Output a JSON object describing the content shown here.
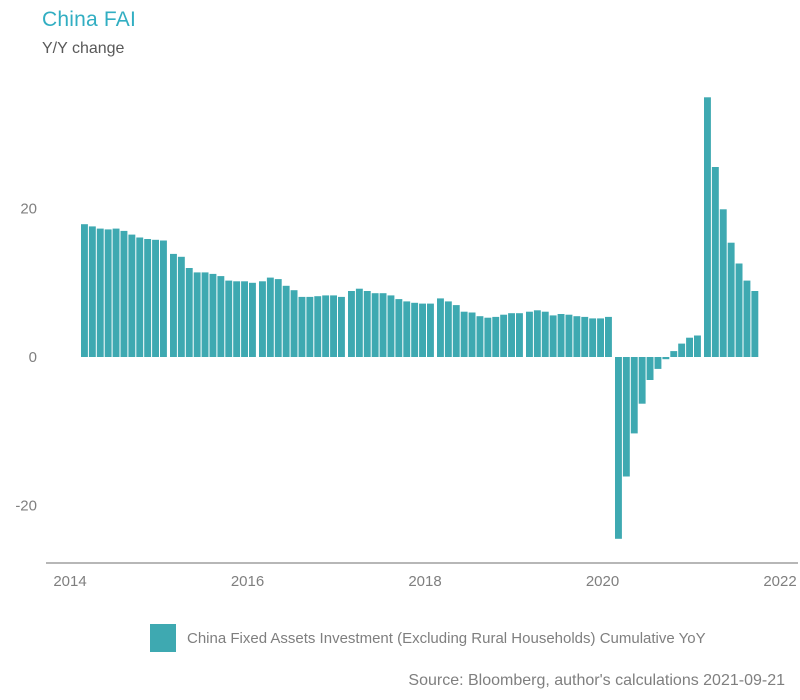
{
  "header": {
    "title": "China FAI",
    "subtitle": "Y/Y change"
  },
  "legend": {
    "label": "China Fixed Assets Investment (Excluding Rural Households) Cumulative YoY"
  },
  "source": {
    "text": "Source: Bloomberg, author's calculations 2021-09-21"
  },
  "colors": {
    "title_accent": "#31AEC2",
    "bar": "#3EA9B1",
    "subtitle_text": "#595959",
    "muted_text": "#7F7F7F",
    "axis_line": "#8C8C8C",
    "background": "#FFFFFF"
  },
  "chart_data": {
    "type": "bar",
    "title": "China FAI",
    "subtitle": "Y/Y change",
    "ylabel": "Y/Y change (%)",
    "xlabel": "",
    "grid": false,
    "legend_position": "bottom",
    "yticks": [
      20,
      0,
      -20
    ],
    "ylim": [
      -27,
      37
    ],
    "xticks": [
      "2014",
      "2016",
      "2018",
      "2020",
      "2022"
    ],
    "xlim": [
      2013.6,
      2022.3
    ],
    "series": [
      {
        "name": "China Fixed Assets Investment (Excluding Rural Households) Cumulative YoY",
        "color": "#3EA9B1",
        "frequency": "monthly-cumulative (Feb-Dec, no January print)",
        "years": [
          {
            "year": 2014,
            "start_month": 2,
            "values": [
              17.9,
              17.6,
              17.3,
              17.2,
              17.3,
              17.0,
              16.5,
              16.1,
              15.9,
              15.8,
              15.7
            ]
          },
          {
            "year": 2015,
            "start_month": 2,
            "values": [
              13.9,
              13.5,
              12.0,
              11.4,
              11.4,
              11.2,
              10.9,
              10.3,
              10.2,
              10.2,
              10.0
            ]
          },
          {
            "year": 2016,
            "start_month": 2,
            "values": [
              10.2,
              10.7,
              10.5,
              9.6,
              9.0,
              8.1,
              8.1,
              8.2,
              8.3,
              8.3,
              8.1
            ]
          },
          {
            "year": 2017,
            "start_month": 2,
            "values": [
              8.9,
              9.2,
              8.9,
              8.6,
              8.6,
              8.3,
              7.8,
              7.5,
              7.3,
              7.2,
              7.2
            ]
          },
          {
            "year": 2018,
            "start_month": 2,
            "values": [
              7.9,
              7.5,
              7.0,
              6.1,
              6.0,
              5.5,
              5.3,
              5.4,
              5.7,
              5.9,
              5.9
            ]
          },
          {
            "year": 2019,
            "start_month": 2,
            "values": [
              6.1,
              6.3,
              6.1,
              5.6,
              5.8,
              5.7,
              5.5,
              5.4,
              5.2,
              5.2,
              5.4
            ]
          },
          {
            "year": 2020,
            "start_month": 2,
            "values": [
              -24.5,
              -16.1,
              -10.3,
              -6.3,
              -3.1,
              -1.6,
              -0.3,
              0.8,
              1.8,
              2.6,
              2.9
            ]
          },
          {
            "year": 2021,
            "start_month": 2,
            "values": [
              35.0,
              25.6,
              19.9,
              15.4,
              12.6,
              10.3,
              8.9
            ]
          }
        ]
      }
    ]
  }
}
